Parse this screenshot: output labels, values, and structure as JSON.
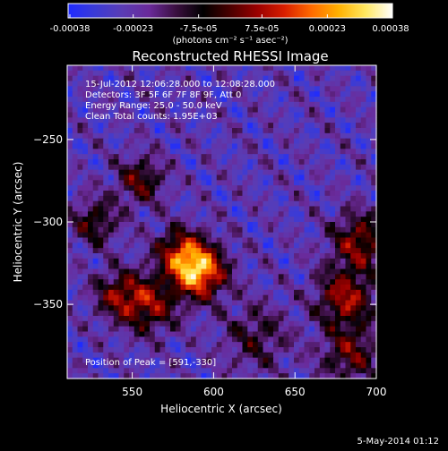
{
  "colorbar": {
    "ticks": [
      "-0.00038",
      "-0.00023",
      "-7.5e-05",
      "7.5e-05",
      "0.00023",
      "0.00038"
    ],
    "unit_label": "(photons cm⁻² s⁻¹ asec⁻²)",
    "colormap": [
      "#1f2bff",
      "#3b3bd6",
      "#5a3cb4",
      "#6a2a9a",
      "#3a0f3f",
      "#000000",
      "#4a0000",
      "#9a0000",
      "#d81e00",
      "#ff6a00",
      "#ffb000",
      "#ffe860",
      "#ffffff"
    ]
  },
  "chart_data": {
    "type": "heatmap",
    "title": "Reconstructed RHESSI Image",
    "xlabel": "Heliocentric X (arcsec)",
    "ylabel": "Heliocentric Y (arcsec)",
    "xlim": [
      510,
      700
    ],
    "ylim": [
      -395,
      -205
    ],
    "xticks": [
      550,
      600,
      650,
      700
    ],
    "yticks": [
      -250,
      -300,
      -350
    ],
    "peak": [
      591,
      -330
    ],
    "zrange": [
      -0.00038,
      0.00038
    ],
    "info_lines": [
      "15-Jul-2012 12:06:28.000 to 12:08:28.000",
      "Detectors: 3F 5F 6F 7F 8F 9F, Att 0",
      "Energy Range: 25.0 - 50.0 keV",
      "Clean     Total counts: 1.95E+03"
    ],
    "peak_text": "Position of Peak = [591,-330]",
    "sources": [
      {
        "x": 591,
        "y": -330,
        "amp": 1.0,
        "width": 11
      },
      {
        "x": 579,
        "y": -318,
        "amp": 0.55,
        "width": 10
      },
      {
        "x": 560,
        "y": -350,
        "amp": 0.55,
        "width": 12
      },
      {
        "x": 541,
        "y": -344,
        "amp": 0.45,
        "width": 10
      },
      {
        "x": 555,
        "y": -275,
        "amp": 0.45,
        "width": 10
      },
      {
        "x": 527,
        "y": -300,
        "amp": 0.4,
        "width": 10
      },
      {
        "x": 681,
        "y": -346,
        "amp": 0.6,
        "width": 12
      },
      {
        "x": 690,
        "y": -312,
        "amp": 0.55,
        "width": 12
      },
      {
        "x": 684,
        "y": -380,
        "amp": 0.45,
        "width": 12
      },
      {
        "x": 626,
        "y": -370,
        "amp": 0.3,
        "width": 14
      }
    ]
  },
  "footer": {
    "date": "5-May-2014 01:12"
  }
}
